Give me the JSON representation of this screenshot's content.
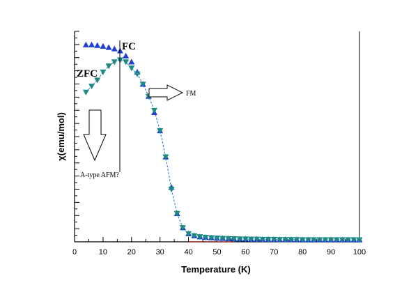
{
  "chart_data": {
    "type": "scatter",
    "xlabel": "Temperature (K)",
    "ylabel": "χ(emu/mol)",
    "xlim": [
      0,
      100
    ],
    "ylim": [
      0,
      1
    ],
    "x_ticks": [
      "0",
      "10",
      "20",
      "30",
      "40",
      "50",
      "60",
      "70",
      "80",
      "90",
      "100"
    ],
    "grid": false,
    "series": [
      {
        "name": "FC",
        "marker": "triangle-up",
        "color": "#1f3fd0",
        "points": [
          [
            4,
            0.975
          ],
          [
            6,
            0.975
          ],
          [
            8,
            0.972
          ],
          [
            10,
            0.968
          ],
          [
            12,
            0.962
          ],
          [
            14,
            0.955
          ],
          [
            16,
            0.945
          ],
          [
            18,
            0.92
          ],
          [
            20,
            0.89
          ],
          [
            22,
            0.84
          ],
          [
            24,
            0.78
          ],
          [
            26,
            0.72
          ],
          [
            28,
            0.64
          ],
          [
            30,
            0.55
          ],
          [
            32,
            0.42
          ],
          [
            34,
            0.27
          ],
          [
            36,
            0.14
          ],
          [
            38,
            0.07
          ],
          [
            40,
            0.04
          ],
          [
            42,
            0.03
          ],
          [
            44,
            0.025
          ],
          [
            46,
            0.022
          ],
          [
            48,
            0.02
          ],
          [
            50,
            0.018
          ],
          [
            52,
            0.017
          ],
          [
            54,
            0.016
          ],
          [
            56,
            0.015
          ],
          [
            58,
            0.014
          ],
          [
            60,
            0.014
          ],
          [
            62,
            0.013
          ],
          [
            64,
            0.013
          ],
          [
            66,
            0.012
          ],
          [
            68,
            0.012
          ],
          [
            70,
            0.012
          ],
          [
            72,
            0.011
          ],
          [
            74,
            0.011
          ],
          [
            76,
            0.011
          ],
          [
            78,
            0.011
          ],
          [
            80,
            0.01
          ],
          [
            82,
            0.01
          ],
          [
            84,
            0.01
          ],
          [
            86,
            0.01
          ],
          [
            88,
            0.01
          ],
          [
            90,
            0.01
          ],
          [
            92,
            0.01
          ],
          [
            94,
            0.01
          ],
          [
            96,
            0.01
          ],
          [
            98,
            0.01
          ],
          [
            100,
            0.01
          ]
        ]
      },
      {
        "name": "ZFC",
        "marker": "triangle-down",
        "color": "#1a8a82",
        "points": [
          [
            4,
            0.74
          ],
          [
            6,
            0.77
          ],
          [
            8,
            0.8
          ],
          [
            10,
            0.84
          ],
          [
            12,
            0.87
          ],
          [
            14,
            0.89
          ],
          [
            16,
            0.9
          ],
          [
            18,
            0.89
          ],
          [
            20,
            0.86
          ],
          [
            22,
            0.83
          ],
          [
            24,
            0.78
          ],
          [
            26,
            0.72
          ],
          [
            28,
            0.65
          ],
          [
            30,
            0.55
          ],
          [
            32,
            0.42
          ],
          [
            34,
            0.26
          ],
          [
            36,
            0.14
          ],
          [
            38,
            0.07
          ],
          [
            40,
            0.04
          ],
          [
            42,
            0.03
          ],
          [
            44,
            0.025
          ],
          [
            46,
            0.022
          ],
          [
            48,
            0.02
          ],
          [
            50,
            0.018
          ],
          [
            52,
            0.017
          ],
          [
            54,
            0.016
          ],
          [
            56,
            0.015
          ],
          [
            58,
            0.014
          ],
          [
            60,
            0.014
          ],
          [
            62,
            0.013
          ],
          [
            64,
            0.013
          ],
          [
            66,
            0.012
          ],
          [
            68,
            0.012
          ],
          [
            70,
            0.012
          ],
          [
            72,
            0.011
          ],
          [
            74,
            0.011
          ],
          [
            76,
            0.011
          ],
          [
            78,
            0.011
          ],
          [
            80,
            0.01
          ],
          [
            82,
            0.01
          ],
          [
            84,
            0.01
          ],
          [
            86,
            0.01
          ],
          [
            88,
            0.01
          ],
          [
            90,
            0.01
          ],
          [
            92,
            0.01
          ],
          [
            94,
            0.01
          ],
          [
            96,
            0.01
          ],
          [
            98,
            0.01
          ],
          [
            100,
            0.01
          ]
        ]
      }
    ],
    "annotations": {
      "fc_label": "FC",
      "zfc_label": "ZFC",
      "fm_label": "FM",
      "afm_label": "A-type AFM?",
      "transition_line_x": 16
    }
  }
}
